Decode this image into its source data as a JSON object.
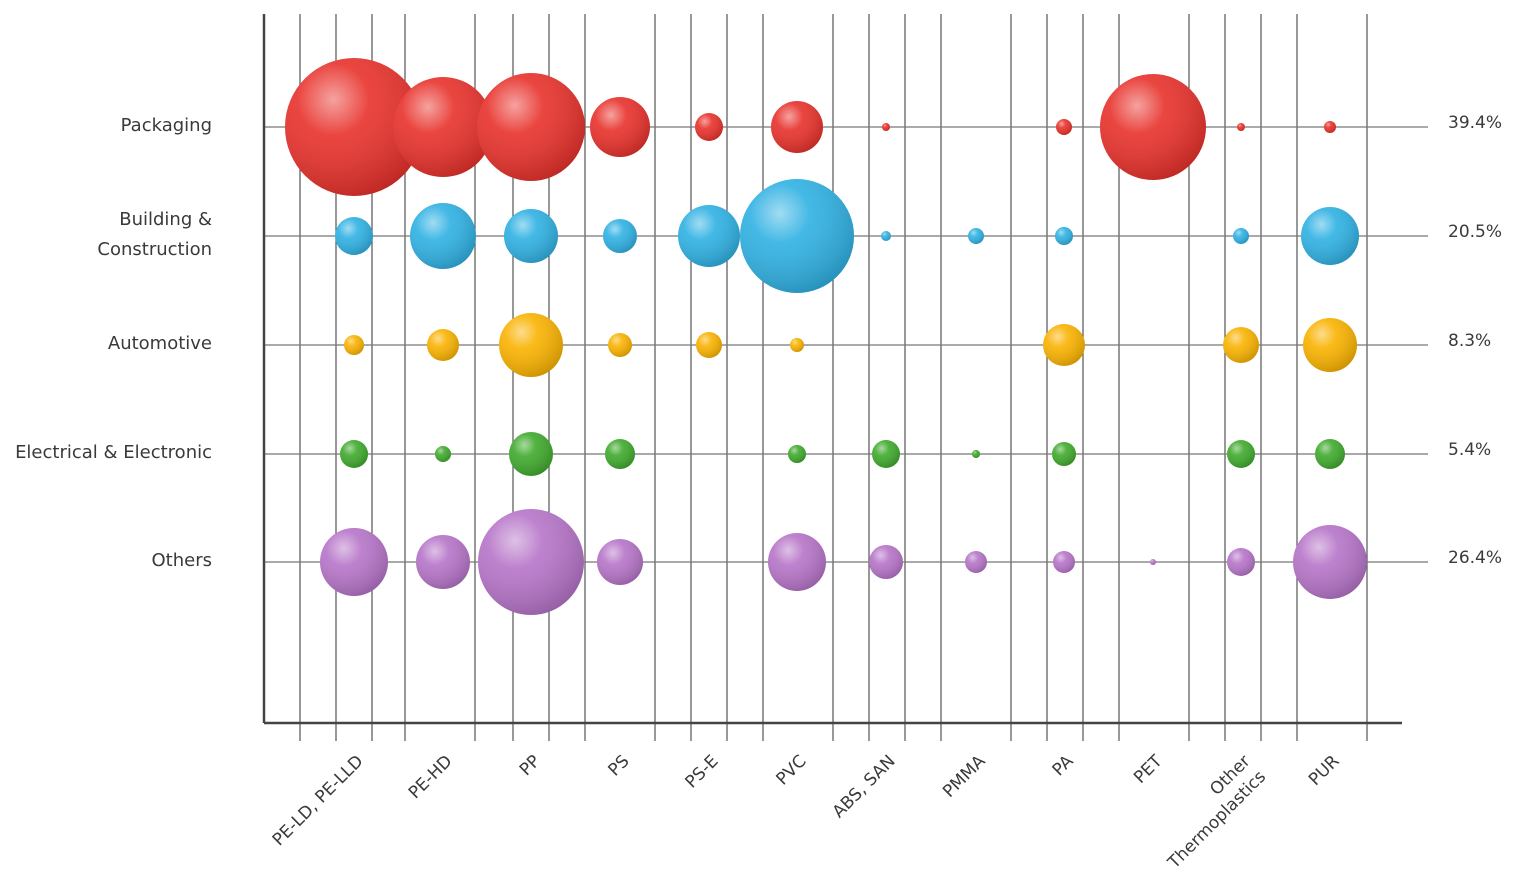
{
  "chart_data": {
    "type": "bubble",
    "title": "",
    "categories": [
      "PE-LD, PE-LLD",
      "PE-HD",
      "PP",
      "PS",
      "PS-E",
      "PVC",
      "ABS, SAN",
      "PMMA",
      "PA",
      "PET",
      "Other\nThermoplastics",
      "PUR"
    ],
    "rows": [
      {
        "name": "Packaging",
        "share": "39.4%",
        "color": "#e8312b",
        "values": [
          69,
          50,
          54,
          30,
          14,
          26,
          4,
          0,
          8,
          53,
          4,
          6
        ]
      },
      {
        "name": "Building &\nConstruction",
        "share": "20.5%",
        "color": "#2fb1e3",
        "values": [
          19,
          33,
          27,
          17,
          31,
          57,
          5,
          8,
          9,
          0,
          8,
          29
        ]
      },
      {
        "name": "Automotive",
        "share": "8.3%",
        "color": "#f9b200",
        "values": [
          10,
          16,
          32,
          12,
          13,
          7,
          0,
          0,
          21,
          0,
          18,
          27
        ]
      },
      {
        "name": "Electrical & Electronic",
        "share": "5.4%",
        "color": "#3fa92c",
        "values": [
          14,
          8,
          22,
          15,
          0,
          9,
          14,
          4,
          12,
          0,
          14,
          15
        ]
      },
      {
        "name": "Others",
        "share": "26.4%",
        "color": "#b674c8",
        "values": [
          34,
          27,
          53,
          23,
          0,
          29,
          17,
          11,
          11,
          3,
          14,
          37
        ]
      }
    ],
    "grid": true,
    "share_labels_position": "right"
  }
}
